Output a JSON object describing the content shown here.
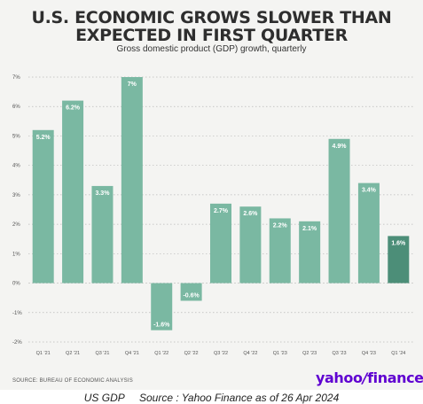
{
  "title_line1": "U.S. ECONOMIC GROWS SLOWER THAN",
  "title_line2": "EXPECTED IN FIRST QUARTER",
  "subtitle": "Gross domestic product (GDP) growth, quarterly",
  "source_note": "SOURCE: BUREAU OF ECONOMIC ANALYSIS",
  "logo": {
    "word": "yahoo",
    "slash": "/",
    "suffix": "finance"
  },
  "caption": {
    "left": "US GDP",
    "right": "Source : Yahoo Finance as of 26 Apr 2024"
  },
  "colors": {
    "bar": "#7ab8a2",
    "bar_highlight": "#4c8e78",
    "background": "#f4f4f2",
    "logo": "#5f01d1"
  },
  "chart_data": {
    "type": "bar",
    "title": "U.S. ECONOMIC GROWS SLOWER THAN EXPECTED IN FIRST QUARTER",
    "subtitle": "Gross domestic product (GDP) growth, quarterly",
    "xlabel": "",
    "ylabel": "",
    "categories": [
      "Q1 '21",
      "Q2 '21",
      "Q3 '21",
      "Q4 '21",
      "Q1 '22",
      "Q2 '22",
      "Q3 '22",
      "Q4 '22",
      "Q1 '23",
      "Q2 '23",
      "Q3 '23",
      "Q4 '23",
      "Q1 '24"
    ],
    "values": [
      5.2,
      6.2,
      3.3,
      7.0,
      -1.6,
      -0.6,
      2.7,
      2.6,
      2.2,
      2.1,
      4.9,
      3.4,
      1.6
    ],
    "data_labels": [
      "5.2%",
      "6.2%",
      "3.3%",
      "7%",
      "-1.6%",
      "-0.6%",
      "2.7%",
      "2.6%",
      "2.2%",
      "2.1%",
      "4.9%",
      "3.4%",
      "1.6%"
    ],
    "ylim": [
      -2,
      7
    ],
    "yticks": [
      7,
      6,
      5,
      4,
      3,
      2,
      1,
      0,
      -1,
      -2
    ],
    "ytick_labels": [
      "7%",
      "6%",
      "5%",
      "4%",
      "3%",
      "2%",
      "1%",
      "0%",
      "-1%",
      "-2%"
    ],
    "highlight_index": 12,
    "grid": true,
    "legend": "none"
  }
}
